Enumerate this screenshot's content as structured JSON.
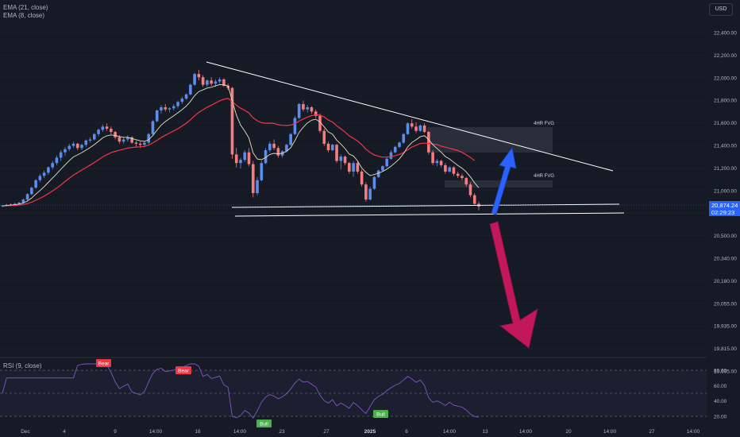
{
  "indicators": {
    "ema21": "EMA (21, close)",
    "ema8": "EMA (8, close)",
    "rsi": "RSI (9, close)"
  },
  "currency": "USD",
  "last_price": {
    "value": "20,874.24",
    "countdown": "02:29:23"
  },
  "colors": {
    "background": "#161a25",
    "up": "#5b8def",
    "down": "#f77c80",
    "ema21": "#f23645",
    "ema8": "#e8e1c4",
    "trendline": "#ffffff",
    "rsi_line": "#7e57c2",
    "arrow_up": "#2962ff",
    "arrow_down": "#c2185b"
  },
  "annotations": {
    "fvg_upper": "4HR FVG",
    "fvg_lower": "4HR FVG",
    "rsi_labels": [
      "Bear",
      "Bear",
      "Bull",
      "Bull"
    ]
  },
  "chart_data": {
    "type": "candlestick",
    "y_axis": [
      "22,400.00",
      "22,200.00",
      "22,000.00",
      "21,800.00",
      "21,600.00",
      "21,400.00",
      "21,200.00",
      "21,000.00",
      "20,650.00",
      "20,500.00",
      "20,340.00",
      "20,180.00",
      "20,055.00",
      "19,935.00",
      "19,815.00",
      "19,695.00"
    ],
    "x_axis": [
      "Dec",
      "4",
      "9",
      "14:00",
      "16",
      "14:00",
      "23",
      "27",
      "2025",
      "6",
      "14:00",
      "13",
      "14:00",
      "20",
      "14:00",
      "27",
      "14:00"
    ],
    "rsi_axis": [
      "80.00",
      "60.00",
      "40.00",
      "20.00"
    ],
    "price_range": [
      19600,
      22560
    ],
    "candles": [
      [
        20880,
        20890,
        20870,
        20885
      ],
      [
        20885,
        20900,
        20875,
        20890
      ],
      [
        20890,
        20905,
        20880,
        20895
      ],
      [
        20895,
        20910,
        20885,
        20900
      ],
      [
        20900,
        20920,
        20890,
        20910
      ],
      [
        20910,
        20950,
        20900,
        20940
      ],
      [
        20940,
        21000,
        20930,
        20990
      ],
      [
        20990,
        21060,
        20980,
        21050
      ],
      [
        21050,
        21130,
        21040,
        21120
      ],
      [
        21120,
        21180,
        21100,
        21160
      ],
      [
        21160,
        21210,
        21140,
        21190
      ],
      [
        21190,
        21250,
        21170,
        21240
      ],
      [
        21240,
        21300,
        21220,
        21280
      ],
      [
        21280,
        21350,
        21260,
        21330
      ],
      [
        21330,
        21400,
        21300,
        21380
      ],
      [
        21380,
        21430,
        21350,
        21410
      ],
      [
        21410,
        21460,
        21390,
        21440
      ],
      [
        21440,
        21480,
        21420,
        21460
      ],
      [
        21460,
        21470,
        21400,
        21420
      ],
      [
        21420,
        21460,
        21400,
        21450
      ],
      [
        21450,
        21500,
        21430,
        21490
      ],
      [
        21490,
        21520,
        21470,
        21500
      ],
      [
        21500,
        21560,
        21490,
        21550
      ],
      [
        21550,
        21600,
        21530,
        21590
      ],
      [
        21590,
        21640,
        21570,
        21620
      ],
      [
        21620,
        21650,
        21580,
        21600
      ],
      [
        21600,
        21620,
        21550,
        21570
      ],
      [
        21570,
        21580,
        21500,
        21520
      ],
      [
        21520,
        21540,
        21460,
        21480
      ],
      [
        21480,
        21520,
        21460,
        21500
      ],
      [
        21500,
        21540,
        21480,
        21520
      ],
      [
        21520,
        21530,
        21460,
        21470
      ],
      [
        21470,
        21490,
        21430,
        21460
      ],
      [
        21460,
        21480,
        21420,
        21450
      ],
      [
        21450,
        21480,
        21430,
        21470
      ],
      [
        21470,
        21560,
        21460,
        21550
      ],
      [
        21550,
        21680,
        21540,
        21670
      ],
      [
        21670,
        21780,
        21660,
        21770
      ],
      [
        21770,
        21820,
        21740,
        21800
      ],
      [
        21800,
        21830,
        21760,
        21780
      ],
      [
        21780,
        21800,
        21750,
        21790
      ],
      [
        21790,
        21830,
        21770,
        21810
      ],
      [
        21810,
        21860,
        21790,
        21850
      ],
      [
        21850,
        21900,
        21830,
        21880
      ],
      [
        21880,
        21930,
        21870,
        21920
      ],
      [
        21920,
        22020,
        21910,
        22010
      ],
      [
        22010,
        22120,
        22000,
        22110
      ],
      [
        22110,
        22150,
        22050,
        22080
      ],
      [
        22080,
        22100,
        21990,
        22010
      ],
      [
        22010,
        22060,
        21990,
        22050
      ],
      [
        22050,
        22080,
        22000,
        22020
      ],
      [
        22020,
        22060,
        21990,
        22040
      ],
      [
        22040,
        22080,
        22020,
        22060
      ],
      [
        22060,
        22070,
        21990,
        22000
      ],
      [
        22000,
        22020,
        21960,
        21980
      ],
      [
        21980,
        21990,
        21320,
        21360
      ],
      [
        21360,
        21420,
        21240,
        21280
      ],
      [
        21280,
        21330,
        21230,
        21310
      ],
      [
        21310,
        21400,
        21290,
        21380
      ],
      [
        21380,
        21420,
        21250,
        21270
      ],
      [
        21270,
        21300,
        20960,
        21000
      ],
      [
        21000,
        21150,
        20980,
        21120
      ],
      [
        21120,
        21300,
        21110,
        21280
      ],
      [
        21280,
        21420,
        21270,
        21400
      ],
      [
        21400,
        21480,
        21380,
        21460
      ],
      [
        21460,
        21500,
        21400,
        21420
      ],
      [
        21420,
        21440,
        21330,
        21350
      ],
      [
        21350,
        21400,
        21330,
        21390
      ],
      [
        21390,
        21460,
        21380,
        21450
      ],
      [
        21450,
        21560,
        21440,
        21550
      ],
      [
        21550,
        21720,
        21540,
        21700
      ],
      [
        21700,
        21840,
        21690,
        21830
      ],
      [
        21830,
        21860,
        21760,
        21780
      ],
      [
        21780,
        21820,
        21750,
        21800
      ],
      [
        21800,
        21810,
        21740,
        21760
      ],
      [
        21760,
        21780,
        21700,
        21720
      ],
      [
        21720,
        21740,
        21560,
        21580
      ],
      [
        21580,
        21600,
        21440,
        21460
      ],
      [
        21460,
        21480,
        21380,
        21400
      ],
      [
        21400,
        21460,
        21390,
        21450
      ],
      [
        21450,
        21460,
        21280,
        21300
      ],
      [
        21300,
        21360,
        21220,
        21340
      ],
      [
        21340,
        21350,
        21260,
        21280
      ],
      [
        21280,
        21290,
        21180,
        21200
      ],
      [
        21200,
        21300,
        21150,
        21280
      ],
      [
        21280,
        21300,
        21180,
        21200
      ],
      [
        21200,
        21220,
        21060,
        21080
      ],
      [
        21080,
        21100,
        20920,
        20940
      ],
      [
        20940,
        21060,
        20930,
        21040
      ],
      [
        21040,
        21160,
        21030,
        21150
      ],
      [
        21150,
        21220,
        21140,
        21210
      ],
      [
        21210,
        21260,
        21200,
        21250
      ],
      [
        21250,
        21330,
        21240,
        21320
      ],
      [
        21320,
        21400,
        21310,
        21380
      ],
      [
        21380,
        21440,
        21370,
        21430
      ],
      [
        21430,
        21480,
        21420,
        21470
      ],
      [
        21470,
        21560,
        21460,
        21550
      ],
      [
        21550,
        21660,
        21540,
        21650
      ],
      [
        21650,
        21690,
        21600,
        21620
      ],
      [
        21620,
        21660,
        21560,
        21580
      ],
      [
        21580,
        21640,
        21570,
        21630
      ],
      [
        21630,
        21650,
        21560,
        21570
      ],
      [
        21570,
        21580,
        21360,
        21380
      ],
      [
        21380,
        21400,
        21260,
        21280
      ],
      [
        21280,
        21320,
        21250,
        21300
      ],
      [
        21300,
        21310,
        21240,
        21260
      ],
      [
        21260,
        21280,
        21180,
        21200
      ],
      [
        21200,
        21250,
        21190,
        21240
      ],
      [
        21240,
        21250,
        21160,
        21180
      ],
      [
        21180,
        21200,
        21140,
        21160
      ],
      [
        21160,
        21180,
        21120,
        21140
      ],
      [
        21140,
        21150,
        21060,
        21080
      ],
      [
        21080,
        21100,
        20960,
        20980
      ],
      [
        20980,
        21000,
        20880,
        20900
      ],
      [
        20900,
        20920,
        20840,
        20874
      ]
    ],
    "ema21": [
      20880,
      20882,
      20884,
      20886,
      20888,
      20893,
      20902,
      20915,
      20933,
      20952,
      20972,
      20995,
      21020,
      21046,
      21076,
      21107,
      21138,
      21167,
      21191,
      21215,
      21238,
      21261,
      21285,
      21311,
      21337,
      21358,
      21376,
      21389,
      21399,
      21409,
      21420,
      21425,
      21429,
      21431,
      21435,
      21447,
      21467,
      21492,
      21517,
      21539,
      21559,
      21579,
      21600,
      21625,
      21652,
      21683,
      21721,
      21752,
      21776,
      21800,
      21820,
      21840,
      21860,
      21874,
      21883,
      21854,
      21820,
      21791,
      21771,
      21747,
      21701,
      21674,
      21656,
      21651,
      21652,
      21649,
      21637,
      21632,
      21630,
      21634,
      21647,
      21671,
      21690,
      21709,
      21722,
      21731,
      21727,
      21710,
      21681,
      21663,
      21627,
      21599,
      21569,
      21534,
      21510,
      21485,
      21452,
      21409,
      21378,
      21356,
      21343,
      21335,
      21336,
      21339,
      21349,
      21361,
      21378,
      21404,
      21429,
      21446,
      21462,
      21465,
      21462,
      21458,
      21451,
      21438,
      21428,
      21418,
      21407,
      21396,
      21380,
      21357,
      21332,
      21302
    ],
    "ema8": [
      20880,
      20884,
      20888,
      20892,
      20897,
      20907,
      20926,
      20953,
      20990,
      21024,
      21060,
      21100,
      21140,
      21180,
      21222,
      21262,
      21302,
      21337,
      21356,
      21377,
      21401,
      21424,
      21452,
      21482,
      21515,
      21534,
      21542,
      21538,
      21526,
      21520,
      21520,
      21509,
      21498,
      21487,
      21482,
      21497,
      21536,
      21586,
      21634,
      21667,
      21694,
      21721,
      21749,
      21778,
      21811,
      21854,
      21908,
      21947,
      21962,
      21979,
      21987,
      21999,
      22011,
      22009,
      21999,
      21860,
      21728,
      21634,
      21578,
      21513,
      21374,
      21318,
      21311,
      21331,
      21360,
      21370,
      21366,
      21371,
      21389,
      21424,
      21489,
      21565,
      21613,
      21654,
      21679,
      21688,
      21663,
      21617,
      21569,
      21549,
      21493,
      21457,
      21415,
      21364,
      21346,
      21299,
      21234,
      21193,
      21163,
      21173,
      21186,
      21201,
      21223,
      21251,
      21283,
      21319,
      21369,
      21430,
      21472,
      21497,
      21525,
      21535,
      21500,
      21451,
      21416,
      21381,
      21341,
      21318,
      21287,
      21258,
      21232,
      21198,
      21150,
      21096,
      21049
    ]
  }
}
